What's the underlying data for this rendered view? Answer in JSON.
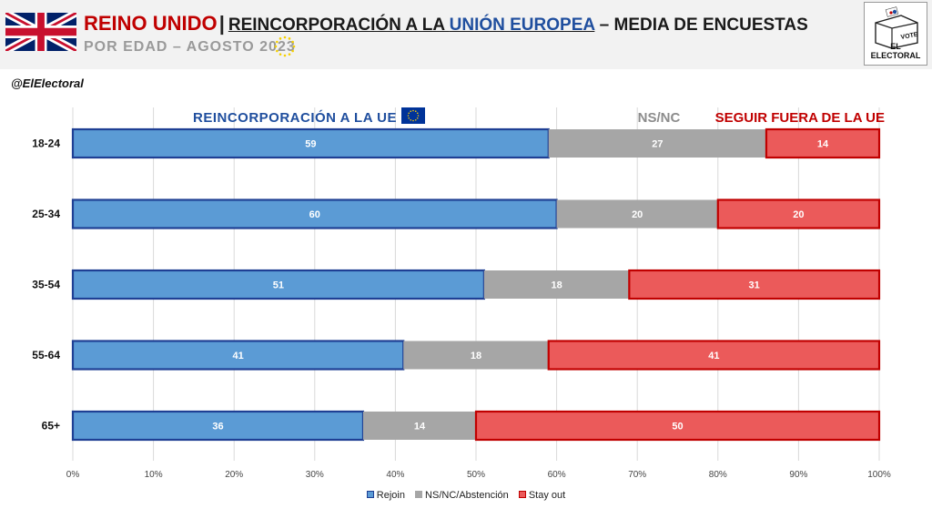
{
  "header": {
    "country": "REINO UNIDO",
    "separator": "|",
    "title_main": "REINCORPORACIÓN A LA ",
    "title_accent": "UNIÓN EUROPEA",
    "title_rest": " – MEDIA DE ENCUESTAS",
    "subtitle": "POR EDAD – AGOSTO 2023",
    "logo_label": "EL ELECTORAL",
    "ballot_label": "VOTE"
  },
  "handle": "@ElElectoral",
  "colors": {
    "rejoin": "#5b9bd5",
    "rejoin_border": "#1f3f94",
    "nsnc": "#a6a6a6",
    "stay_out": "#eb5a5a",
    "stay_out_border": "#c00000",
    "title_red": "#c00000",
    "title_blue": "#1f4e9e"
  },
  "chart_data": {
    "type": "bar",
    "orientation": "horizontal",
    "stacked": true,
    "categories": [
      "18-24",
      "25-34",
      "35-54",
      "55-64",
      "65+"
    ],
    "series": [
      {
        "name": "Rejoin",
        "values": [
          59,
          60,
          51,
          41,
          36
        ]
      },
      {
        "name": "NS/NC/Abstención",
        "values": [
          27,
          20,
          18,
          18,
          14
        ]
      },
      {
        "name": "Stay out",
        "values": [
          14,
          20,
          31,
          41,
          50
        ]
      }
    ],
    "xlim": [
      0,
      100
    ],
    "x_ticks": [
      "0%",
      "10%",
      "20%",
      "30%",
      "40%",
      "50%",
      "60%",
      "70%",
      "80%",
      "90%",
      "100%"
    ],
    "grid": true,
    "legend_position": "bottom",
    "annotations": {
      "rejoin": "REINCORPORACIÓN A LA UE",
      "nsnc": "NS/NC",
      "stay_out": "SEGUIR FUERA DE LA UE"
    }
  }
}
